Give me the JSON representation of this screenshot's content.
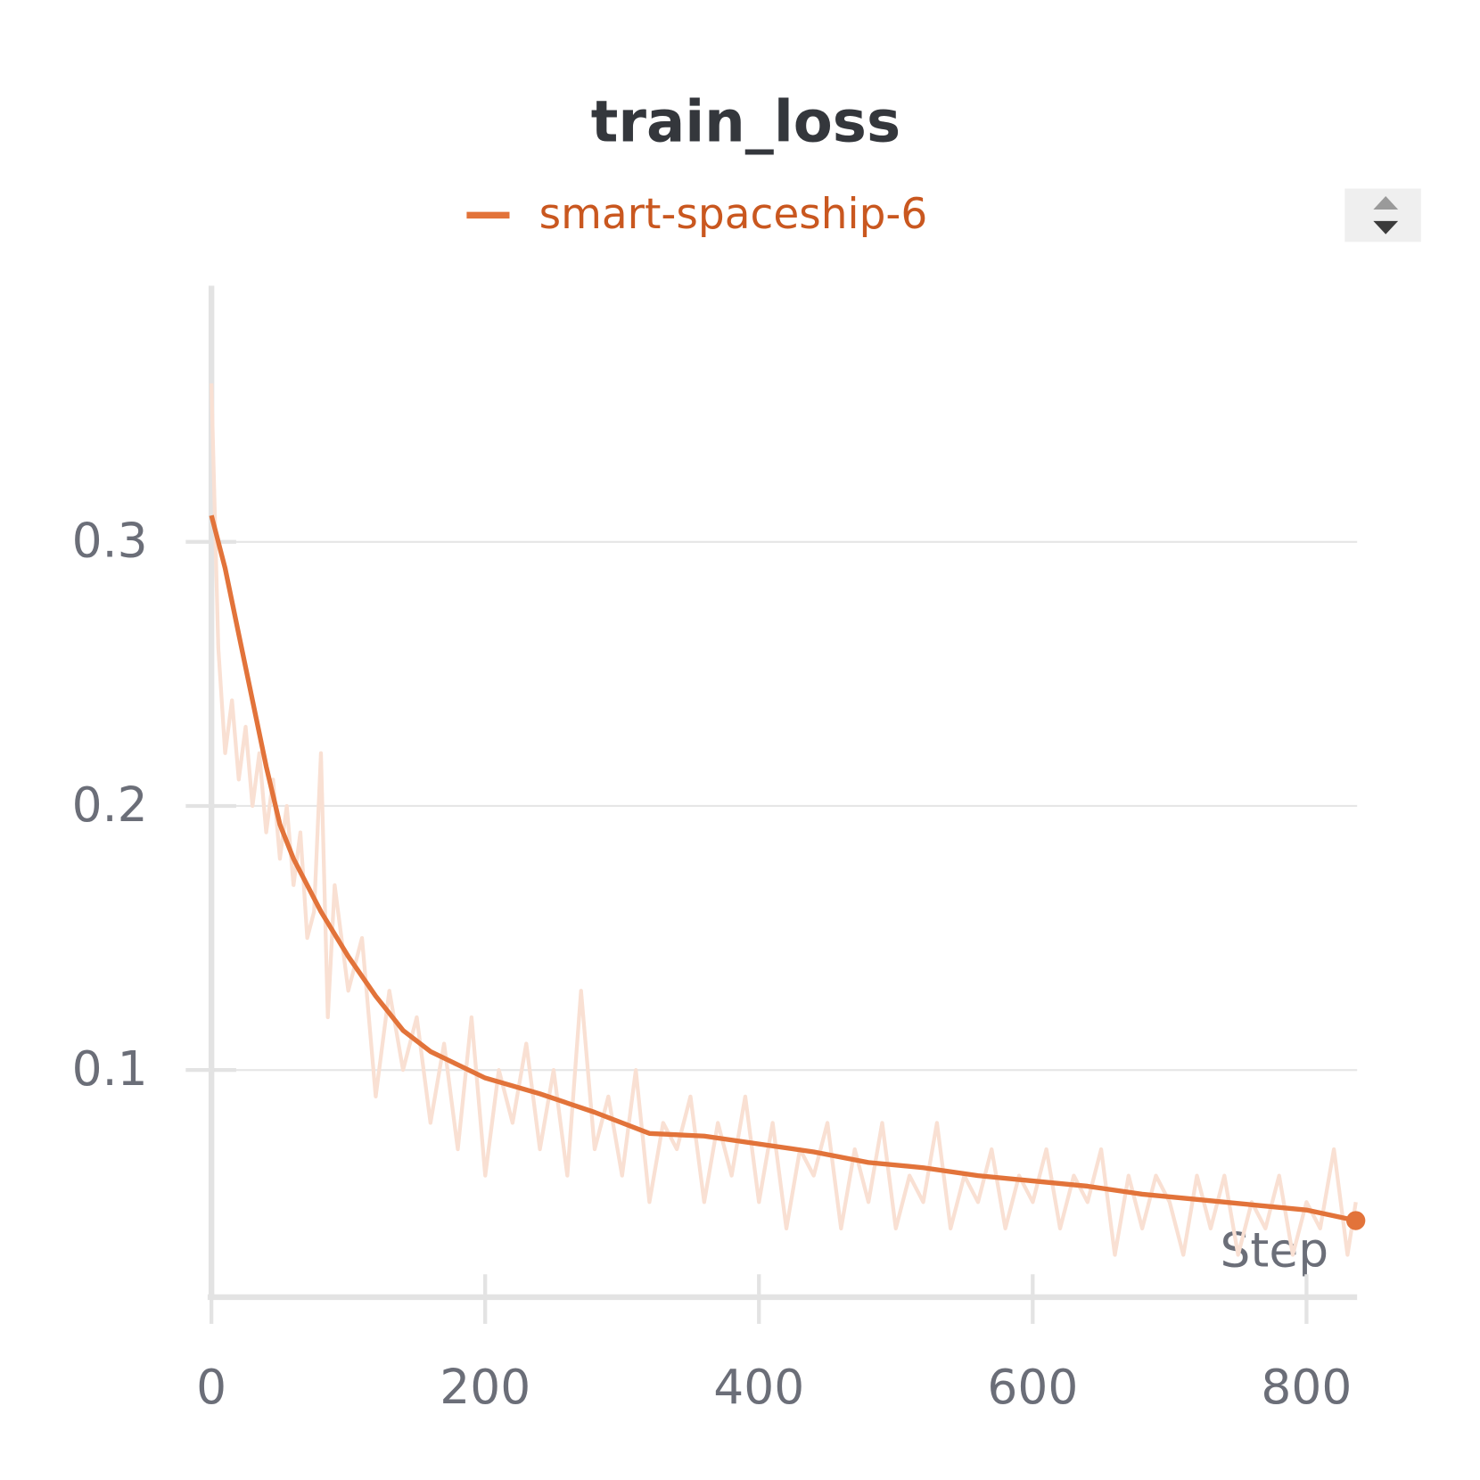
{
  "chart_data": {
    "type": "line",
    "title": "train_loss",
    "xlabel": "Step",
    "series": [
      {
        "name": "smart-spaceship-6",
        "color": "#e2733a",
        "x": [
          0,
          10,
          20,
          30,
          40,
          50,
          60,
          80,
          100,
          120,
          140,
          160,
          180,
          200,
          240,
          280,
          320,
          360,
          400,
          440,
          480,
          520,
          560,
          600,
          640,
          680,
          720,
          760,
          800,
          836
        ],
        "values": [
          0.31,
          0.29,
          0.265,
          0.24,
          0.215,
          0.193,
          0.18,
          0.16,
          0.143,
          0.128,
          0.115,
          0.107,
          0.102,
          0.097,
          0.091,
          0.084,
          0.076,
          0.075,
          0.072,
          0.069,
          0.065,
          0.063,
          0.06,
          0.058,
          0.056,
          0.053,
          0.051,
          0.049,
          0.047,
          0.043
        ],
        "raw": {
          "color": "#f9e0d3",
          "x": [
            0,
            5,
            10,
            15,
            20,
            25,
            30,
            35,
            40,
            45,
            50,
            55,
            60,
            65,
            70,
            75,
            80,
            85,
            90,
            100,
            110,
            120,
            130,
            140,
            150,
            160,
            170,
            180,
            190,
            200,
            210,
            220,
            230,
            240,
            250,
            260,
            270,
            280,
            290,
            300,
            310,
            320,
            330,
            340,
            350,
            360,
            370,
            380,
            390,
            400,
            410,
            420,
            430,
            440,
            450,
            460,
            470,
            480,
            490,
            500,
            510,
            520,
            530,
            540,
            550,
            560,
            570,
            580,
            590,
            600,
            610,
            620,
            630,
            640,
            650,
            660,
            670,
            680,
            690,
            700,
            710,
            720,
            730,
            740,
            750,
            760,
            770,
            780,
            790,
            800,
            810,
            820,
            830,
            836
          ],
          "values": [
            0.36,
            0.26,
            0.22,
            0.24,
            0.21,
            0.23,
            0.2,
            0.22,
            0.19,
            0.21,
            0.18,
            0.2,
            0.17,
            0.19,
            0.15,
            0.16,
            0.22,
            0.12,
            0.17,
            0.13,
            0.15,
            0.09,
            0.13,
            0.1,
            0.12,
            0.08,
            0.11,
            0.07,
            0.12,
            0.06,
            0.1,
            0.08,
            0.11,
            0.07,
            0.1,
            0.06,
            0.13,
            0.07,
            0.09,
            0.06,
            0.1,
            0.05,
            0.08,
            0.07,
            0.09,
            0.05,
            0.08,
            0.06,
            0.09,
            0.05,
            0.08,
            0.04,
            0.07,
            0.06,
            0.08,
            0.04,
            0.07,
            0.05,
            0.08,
            0.04,
            0.06,
            0.05,
            0.08,
            0.04,
            0.06,
            0.05,
            0.07,
            0.04,
            0.06,
            0.05,
            0.07,
            0.04,
            0.06,
            0.05,
            0.07,
            0.03,
            0.06,
            0.04,
            0.06,
            0.05,
            0.03,
            0.06,
            0.04,
            0.06,
            0.03,
            0.05,
            0.04,
            0.06,
            0.03,
            0.05,
            0.04,
            0.07,
            0.03,
            0.05
          ]
        }
      }
    ],
    "xlim": [
      0,
      837
    ],
    "ylim": [
      0.014,
      0.397
    ],
    "xticks": [
      0,
      200,
      400,
      600,
      800
    ],
    "yticks": [
      0.1,
      0.2,
      0.3
    ],
    "grid": true
  }
}
